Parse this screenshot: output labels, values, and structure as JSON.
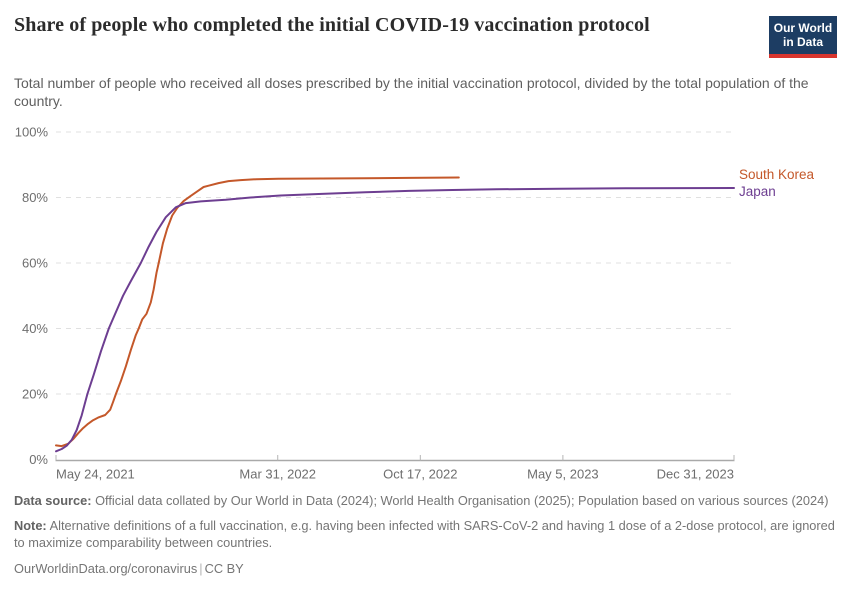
{
  "header": {
    "title": "Share of people who completed the initial COVID-19 vaccination protocol",
    "subtitle": "Total number of people who received all doses prescribed by the initial vaccination protocol, divided by the total population of the country.",
    "logo": {
      "line1": "Our World",
      "line2": "in Data"
    }
  },
  "colors": {
    "south_korea": "#c4582a",
    "japan": "#6d3e91",
    "gridline": "#e0e0e0",
    "axis": "#a9a9a9",
    "tick_text": "#6e6e6e",
    "logo_bg": "#1d3d63",
    "logo_red": "#d8352e"
  },
  "chart_data": {
    "type": "line",
    "title": "Share of people who completed the initial COVID-19 vaccination protocol",
    "xlabel": "",
    "ylabel": "",
    "grid": "horizontal-dashed",
    "legend_position": "right-end-labels",
    "x": {
      "type": "date",
      "min": "2021-05-24",
      "max": "2023-12-31",
      "ticks": [
        {
          "date": "2021-05-24",
          "label": "May 24, 2021"
        },
        {
          "date": "2022-03-31",
          "label": "Mar 31, 2022"
        },
        {
          "date": "2022-10-17",
          "label": "Oct 17, 2022"
        },
        {
          "date": "2023-05-05",
          "label": "May 5, 2023"
        },
        {
          "date": "2023-12-31",
          "label": "Dec 31, 2023"
        }
      ]
    },
    "y": {
      "min": 0,
      "max": 100,
      "ticks": [
        0,
        20,
        40,
        60,
        80,
        100
      ],
      "tick_labels": [
        "0%",
        "20%",
        "40%",
        "60%",
        "80%",
        "100%"
      ]
    },
    "series": [
      {
        "name": "South Korea",
        "color": "#c4582a",
        "points": [
          [
            "2021-05-24",
            4.3
          ],
          [
            "2021-06-01",
            4.1
          ],
          [
            "2021-06-10",
            4.8
          ],
          [
            "2021-06-17",
            6.2
          ],
          [
            "2021-06-24",
            8.0
          ],
          [
            "2021-07-01",
            9.6
          ],
          [
            "2021-07-08",
            10.9
          ],
          [
            "2021-07-15",
            12.0
          ],
          [
            "2021-07-22",
            12.8
          ],
          [
            "2021-08-01",
            13.6
          ],
          [
            "2021-08-08",
            15.2
          ],
          [
            "2021-08-12",
            17.5
          ],
          [
            "2021-08-16",
            20.0
          ],
          [
            "2021-08-23",
            24.0
          ],
          [
            "2021-08-30",
            28.5
          ],
          [
            "2021-09-06",
            33.5
          ],
          [
            "2021-09-13",
            38.0
          ],
          [
            "2021-09-17",
            40.0
          ],
          [
            "2021-09-22",
            42.8
          ],
          [
            "2021-09-28",
            44.5
          ],
          [
            "2021-10-04",
            48.0
          ],
          [
            "2021-10-08",
            52.0
          ],
          [
            "2021-10-12",
            57.0
          ],
          [
            "2021-10-15",
            60.0
          ],
          [
            "2021-10-21",
            66.0
          ],
          [
            "2021-10-27",
            70.5
          ],
          [
            "2021-11-03",
            74.5
          ],
          [
            "2021-11-10",
            76.8
          ],
          [
            "2021-11-19",
            78.9
          ],
          [
            "2021-11-29",
            80.5
          ],
          [
            "2021-12-09",
            82.0
          ],
          [
            "2021-12-17",
            83.2
          ],
          [
            "2021-12-24",
            83.6
          ],
          [
            "2022-01-07",
            84.4
          ],
          [
            "2022-01-21",
            85.0
          ],
          [
            "2022-02-07",
            85.3
          ],
          [
            "2022-03-01",
            85.6
          ],
          [
            "2022-04-01",
            85.7
          ],
          [
            "2022-06-01",
            85.8
          ],
          [
            "2022-08-01",
            85.9
          ],
          [
            "2022-10-01",
            86.0
          ],
          [
            "2022-12-10",
            86.1
          ]
        ]
      },
      {
        "name": "Japan",
        "color": "#6d3e91",
        "points": [
          [
            "2021-05-24",
            2.5
          ],
          [
            "2021-06-01",
            3.2
          ],
          [
            "2021-06-08",
            4.2
          ],
          [
            "2021-06-15",
            6.0
          ],
          [
            "2021-06-22",
            9.0
          ],
          [
            "2021-06-29",
            13.5
          ],
          [
            "2021-07-07",
            20.0
          ],
          [
            "2021-07-16",
            26.0
          ],
          [
            "2021-07-26",
            33.0
          ],
          [
            "2021-08-06",
            40.0
          ],
          [
            "2021-08-16",
            45.0
          ],
          [
            "2021-08-26",
            50.0
          ],
          [
            "2021-09-06",
            54.5
          ],
          [
            "2021-09-20",
            60.0
          ],
          [
            "2021-10-01",
            65.0
          ],
          [
            "2021-10-12",
            69.5
          ],
          [
            "2021-10-25",
            74.0
          ],
          [
            "2021-11-08",
            77.0
          ],
          [
            "2021-11-22",
            78.3
          ],
          [
            "2021-12-13",
            78.8
          ],
          [
            "2022-01-17",
            79.3
          ],
          [
            "2022-02-21",
            80.0
          ],
          [
            "2022-04-04",
            80.6
          ],
          [
            "2022-06-01",
            81.1
          ],
          [
            "2022-08-01",
            81.6
          ],
          [
            "2022-10-01",
            82.0
          ],
          [
            "2022-12-01",
            82.3
          ],
          [
            "2023-02-01",
            82.5
          ],
          [
            "2023-05-01",
            82.7
          ],
          [
            "2023-08-01",
            82.8
          ],
          [
            "2023-12-31",
            82.9
          ]
        ]
      }
    ]
  },
  "footer": {
    "data_source_label": "Data source:",
    "data_source": "Official data collated by Our World in Data (2024); World Health Organisation (2025); Population based on various sources (2024)",
    "note_label": "Note:",
    "note": "Alternative definitions of a full vaccination, e.g. having been infected with SARS-CoV-2 and having 1 dose of a 2-dose protocol, are ignored to maximize comparability between countries.",
    "link": "OurWorldinData.org/coronavirus",
    "separator": "|",
    "license": "CC BY"
  }
}
